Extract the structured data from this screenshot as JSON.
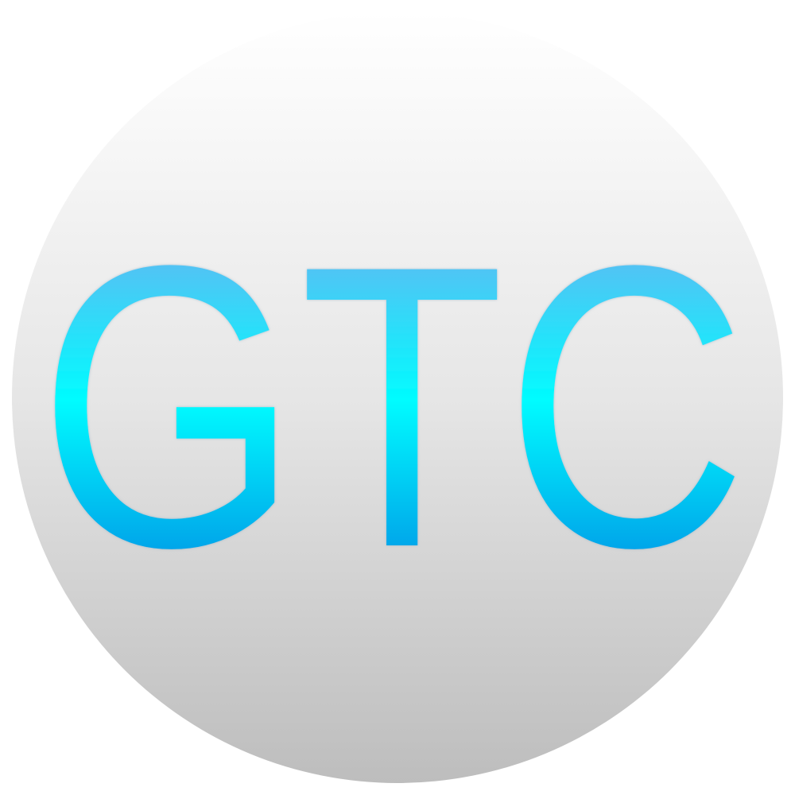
{
  "logo": {
    "text": "GTC"
  }
}
